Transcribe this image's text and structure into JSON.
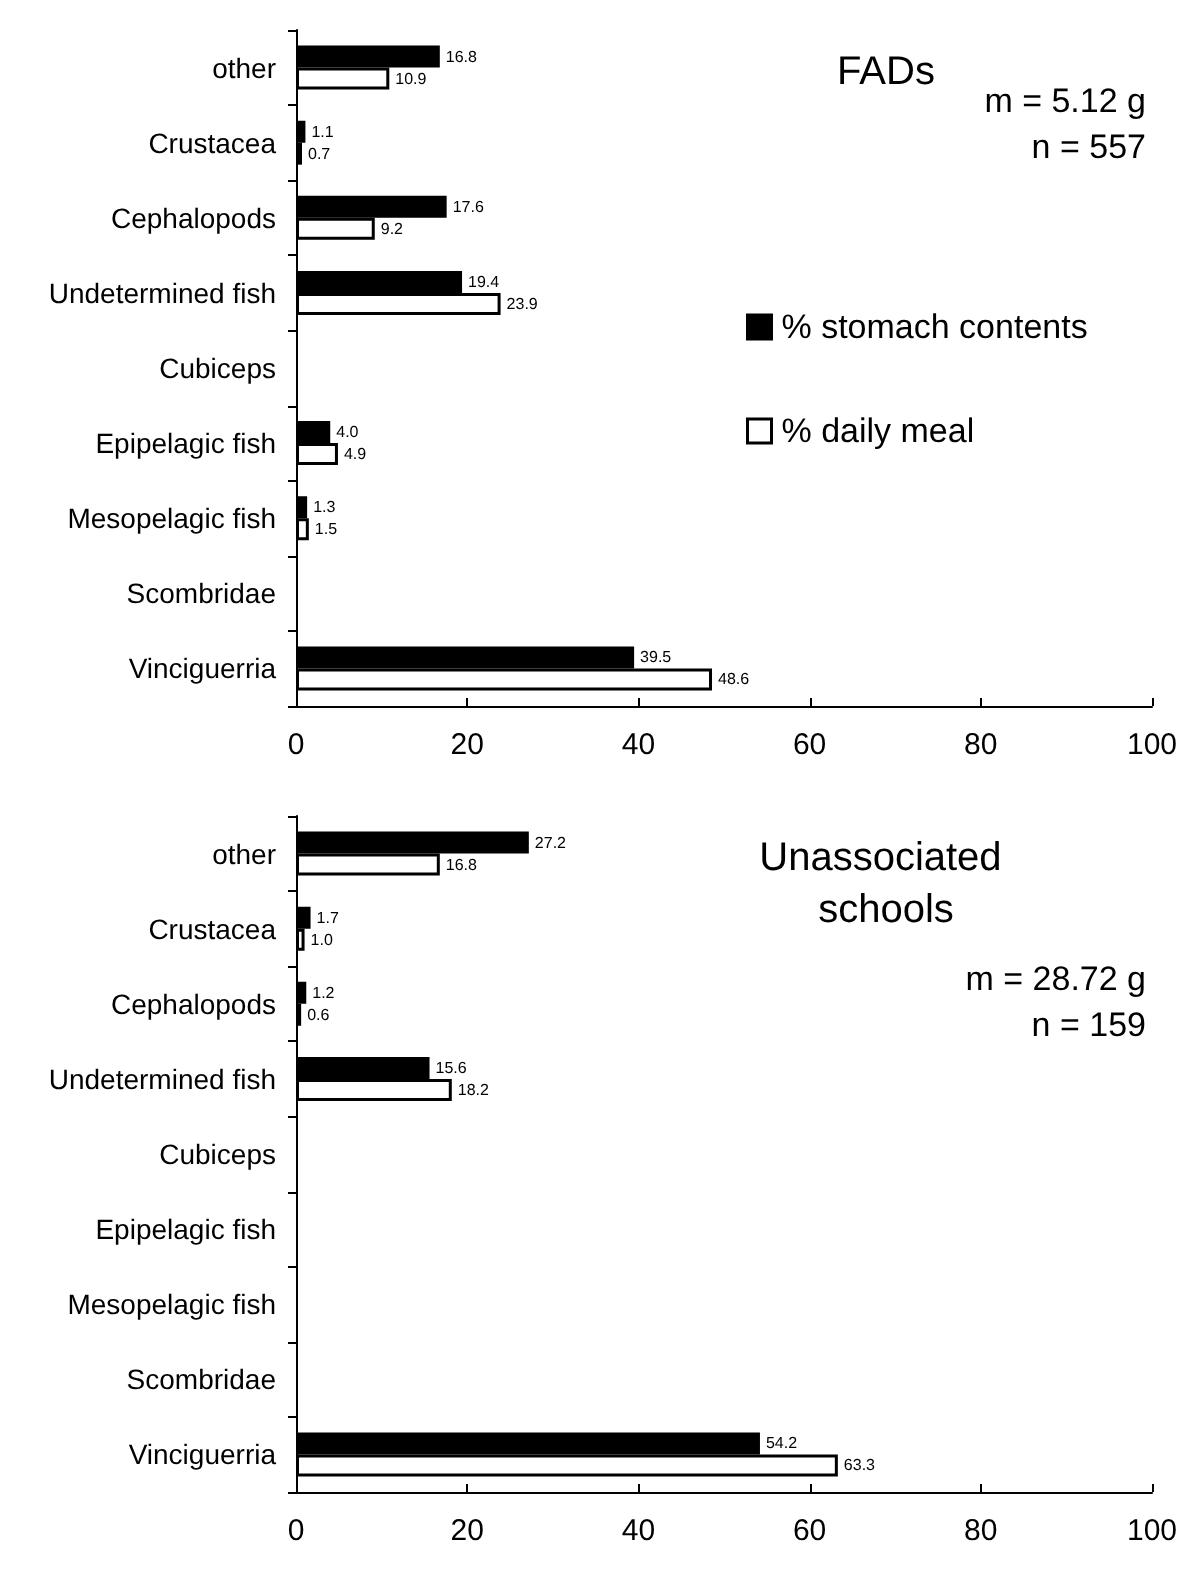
{
  "chart_data": [
    {
      "type": "bar",
      "orientation": "horizontal",
      "title": "FADs",
      "annotations": [
        "m = 5.12 g",
        "n = 557"
      ],
      "categories": [
        "other",
        "Crustacea",
        "Cephalopods",
        "Undetermined fish",
        "Cubiceps",
        "Epipelagic fish",
        "Mesopelagic fish",
        "Scombridae",
        "Vinciguerria"
      ],
      "series": [
        {
          "name": "% stomach contents",
          "color": "#000000",
          "values": [
            16.8,
            1.1,
            17.6,
            19.4,
            0,
            4.0,
            1.3,
            0,
            39.5
          ],
          "value_labels": [
            "16.8",
            "1.1",
            "17.6",
            "19.4",
            null,
            "4.0",
            "1.3",
            null,
            "39.5"
          ]
        },
        {
          "name": "% daily meal",
          "color": "#ffffff",
          "values": [
            10.9,
            0.7,
            9.2,
            23.9,
            0,
            4.9,
            1.5,
            0,
            48.6
          ],
          "value_labels": [
            "10.9",
            "0.7",
            "9.2",
            "23.9",
            null,
            "4.9",
            "1.5",
            null,
            "48.6"
          ]
        }
      ],
      "xlim": [
        0,
        100
      ],
      "xticks": [
        0,
        20,
        40,
        60,
        80,
        100
      ],
      "grid": false,
      "legend": "right"
    },
    {
      "type": "bar",
      "orientation": "horizontal",
      "title": "Unassociated schools",
      "annotations": [
        "m = 28.72 g",
        "n = 159"
      ],
      "categories": [
        "other",
        "Crustacea",
        "Cephalopods",
        "Undetermined fish",
        "Cubiceps",
        "Epipelagic fish",
        "Mesopelagic fish",
        "Scombridae",
        "Vinciguerria"
      ],
      "series": [
        {
          "color": "#000000",
          "values": [
            27.2,
            1.7,
            1.2,
            15.6,
            0,
            0,
            0,
            0,
            54.2
          ],
          "value_labels": [
            "27.2",
            "1.7",
            "1.2",
            "15.6",
            null,
            null,
            null,
            null,
            "54.2"
          ]
        },
        {
          "color": "#ffffff",
          "values": [
            16.8,
            1.0,
            0.6,
            18.2,
            0,
            0,
            0,
            0,
            63.3
          ],
          "value_labels": [
            "16.8",
            "1.0",
            "0.6",
            "18.2",
            null,
            null,
            null,
            null,
            "63.3"
          ]
        }
      ],
      "xlim": [
        0,
        100
      ],
      "xticks": [
        0,
        20,
        40,
        60,
        80,
        100
      ],
      "grid": false,
      "legend": false
    }
  ]
}
